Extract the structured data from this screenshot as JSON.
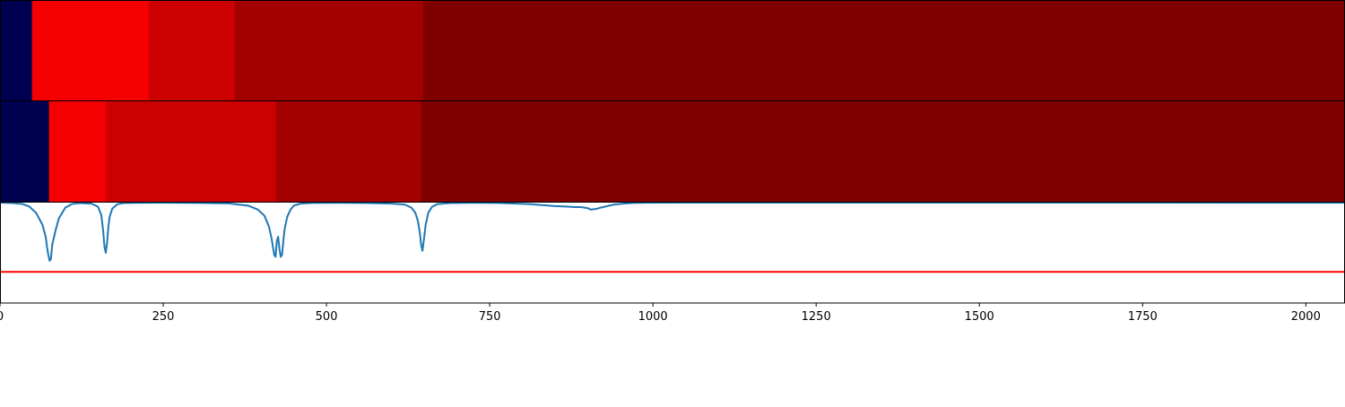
{
  "chart_data": [
    {
      "type": "heatmap",
      "colorscale": [
        "#000050",
        "#f50000",
        "#cc0000",
        "#a30000",
        "#800000"
      ],
      "xlim": [
        0,
        2060
      ],
      "segments": [
        {
          "start": 0,
          "end": 49,
          "level": 0
        },
        {
          "start": 49,
          "end": 228,
          "level": 1
        },
        {
          "start": 228,
          "end": 360,
          "level": 2
        },
        {
          "start": 360,
          "end": 648,
          "level": 3
        },
        {
          "start": 648,
          "end": 2060,
          "level": 4
        }
      ]
    },
    {
      "type": "heatmap",
      "colorscale": [
        "#000050",
        "#f50000",
        "#cc0000",
        "#a30000",
        "#800000"
      ],
      "xlim": [
        0,
        2060
      ],
      "segments": [
        {
          "start": 0,
          "end": 75,
          "level": 0
        },
        {
          "start": 75,
          "end": 162,
          "level": 1
        },
        {
          "start": 162,
          "end": 423,
          "level": 2
        },
        {
          "start": 423,
          "end": 645,
          "level": 3
        },
        {
          "start": 645,
          "end": 2060,
          "level": 4
        }
      ]
    },
    {
      "type": "line",
      "xlim": [
        0,
        2060
      ],
      "ylim": [
        0,
        1
      ],
      "xticks": [
        0,
        250,
        500,
        750,
        1000,
        1250,
        1500,
        1750,
        2000
      ],
      "series_color": "#1f77b4",
      "series": [
        {
          "x": [
            0,
            20,
            35,
            45,
            55,
            65,
            70,
            72,
            74,
            76,
            78,
            80,
            85,
            90,
            100,
            110,
            120,
            140,
            150,
            155,
            158,
            160,
            162,
            164,
            166,
            168,
            172,
            180,
            190,
            210,
            240,
            260,
            300,
            350,
            380,
            395,
            405,
            412,
            416,
            418,
            420,
            422,
            424,
            426,
            428,
            430,
            432,
            434,
            436,
            440,
            445,
            450,
            460,
            480,
            520,
            560,
            600,
            620,
            630,
            636,
            640,
            643,
            645,
            647,
            649,
            652,
            656,
            662,
            670,
            690,
            720,
            760,
            790,
            810,
            830,
            850,
            870,
            880,
            890,
            895,
            900,
            905,
            910,
            915,
            920,
            930,
            940,
            955,
            970,
            990,
            1100,
            1500,
            2060
          ],
          "y": [
            1.0,
            0.995,
            0.985,
            0.96,
            0.9,
            0.78,
            0.66,
            0.56,
            0.48,
            0.42,
            0.44,
            0.58,
            0.72,
            0.84,
            0.95,
            0.985,
            0.995,
            0.99,
            0.96,
            0.88,
            0.72,
            0.56,
            0.5,
            0.6,
            0.76,
            0.86,
            0.94,
            0.985,
            0.995,
            0.998,
            0.999,
            0.999,
            0.997,
            0.992,
            0.97,
            0.93,
            0.87,
            0.76,
            0.64,
            0.56,
            0.48,
            0.46,
            0.62,
            0.66,
            0.54,
            0.46,
            0.48,
            0.62,
            0.74,
            0.86,
            0.93,
            0.97,
            0.99,
            0.997,
            0.998,
            0.996,
            0.99,
            0.98,
            0.95,
            0.9,
            0.82,
            0.7,
            0.58,
            0.52,
            0.62,
            0.78,
            0.9,
            0.96,
            0.985,
            0.995,
            0.998,
            0.997,
            0.99,
            0.985,
            0.975,
            0.965,
            0.96,
            0.955,
            0.955,
            0.95,
            0.945,
            0.93,
            0.935,
            0.94,
            0.95,
            0.965,
            0.98,
            0.99,
            0.997,
            0.999,
            1.0,
            1.0,
            0.999
          ]
        }
      ],
      "threshold": {
        "value": 0.31,
        "color": "#ff0000"
      }
    }
  ]
}
